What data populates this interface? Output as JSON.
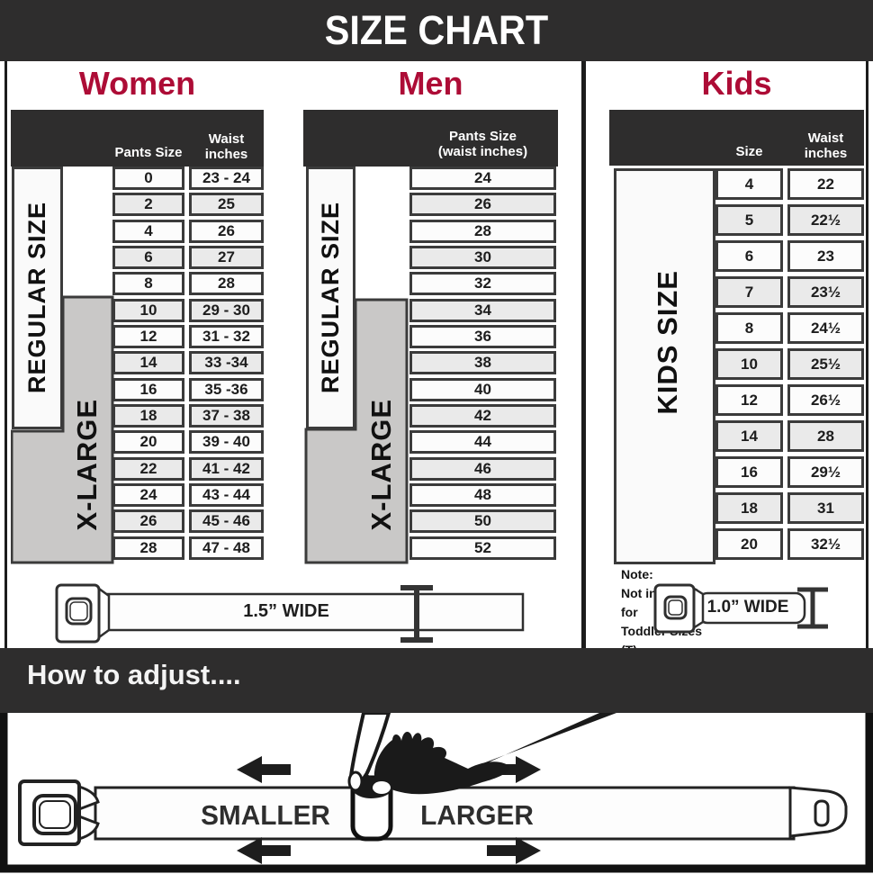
{
  "title": "SIZE CHART",
  "colors": {
    "accent": "#ad0c36",
    "dark": "#2e2d2d",
    "cell_border": "#3b3b3b",
    "xlarge_fill": "#c9c8c7",
    "row": "#fcfcfc",
    "row_alt": "#eaeaea"
  },
  "women": {
    "heading": "Women",
    "col1_header": "Pants Size",
    "col2_header_line1": "Waist",
    "col2_header_line2": "inches",
    "regular_label": "REGULAR SIZE",
    "xlarge_label": "X-LARGE",
    "rows": [
      {
        "size": "0",
        "waist": "23 - 24"
      },
      {
        "size": "2",
        "waist": "25"
      },
      {
        "size": "4",
        "waist": "26"
      },
      {
        "size": "6",
        "waist": "27"
      },
      {
        "size": "8",
        "waist": "28"
      },
      {
        "size": "10",
        "waist": "29 - 30"
      },
      {
        "size": "12",
        "waist": "31 - 32"
      },
      {
        "size": "14",
        "waist": "33 -34"
      },
      {
        "size": "16",
        "waist": "35 -36"
      },
      {
        "size": "18",
        "waist": "37 - 38"
      },
      {
        "size": "20",
        "waist": "39 - 40"
      },
      {
        "size": "22",
        "waist": "41 - 42"
      },
      {
        "size": "24",
        "waist": "43 - 44"
      },
      {
        "size": "26",
        "waist": "45 - 46"
      },
      {
        "size": "28",
        "waist": "47 - 48"
      }
    ]
  },
  "men": {
    "heading": "Men",
    "col_header_line1": "Pants Size",
    "col_header_line2": "(waist inches)",
    "regular_label": "REGULAR SIZE",
    "xlarge_label": "X-LARGE",
    "rows": [
      "24",
      "26",
      "28",
      "30",
      "32",
      "34",
      "36",
      "38",
      "40",
      "42",
      "44",
      "46",
      "48",
      "50",
      "52"
    ]
  },
  "kids": {
    "heading": "Kids",
    "col1_header": "Size",
    "col2_header_line1": "Waist",
    "col2_header_line2": "inches",
    "label": "KIDS SIZE",
    "note_line1": "Note:",
    "note_line2": "Not intended for",
    "note_line3": "Toddler Sizes (T)",
    "rows": [
      {
        "size": "4",
        "waist": "22"
      },
      {
        "size": "5",
        "waist": "22½"
      },
      {
        "size": "6",
        "waist": "23"
      },
      {
        "size": "7",
        "waist": "23½"
      },
      {
        "size": "8",
        "waist": "24½"
      },
      {
        "size": "10",
        "waist": "25½"
      },
      {
        "size": "12",
        "waist": "26½"
      },
      {
        "size": "14",
        "waist": "28"
      },
      {
        "size": "16",
        "waist": "29½"
      },
      {
        "size": "18",
        "waist": "31"
      },
      {
        "size": "20",
        "waist": "32½"
      }
    ]
  },
  "belts": {
    "adult_width_label": "1.5” WIDE",
    "kids_width_label": "1.0” WIDE"
  },
  "adjust": {
    "heading": "How to adjust....",
    "smaller_label": "SMALLER",
    "larger_label": "LARGER"
  }
}
